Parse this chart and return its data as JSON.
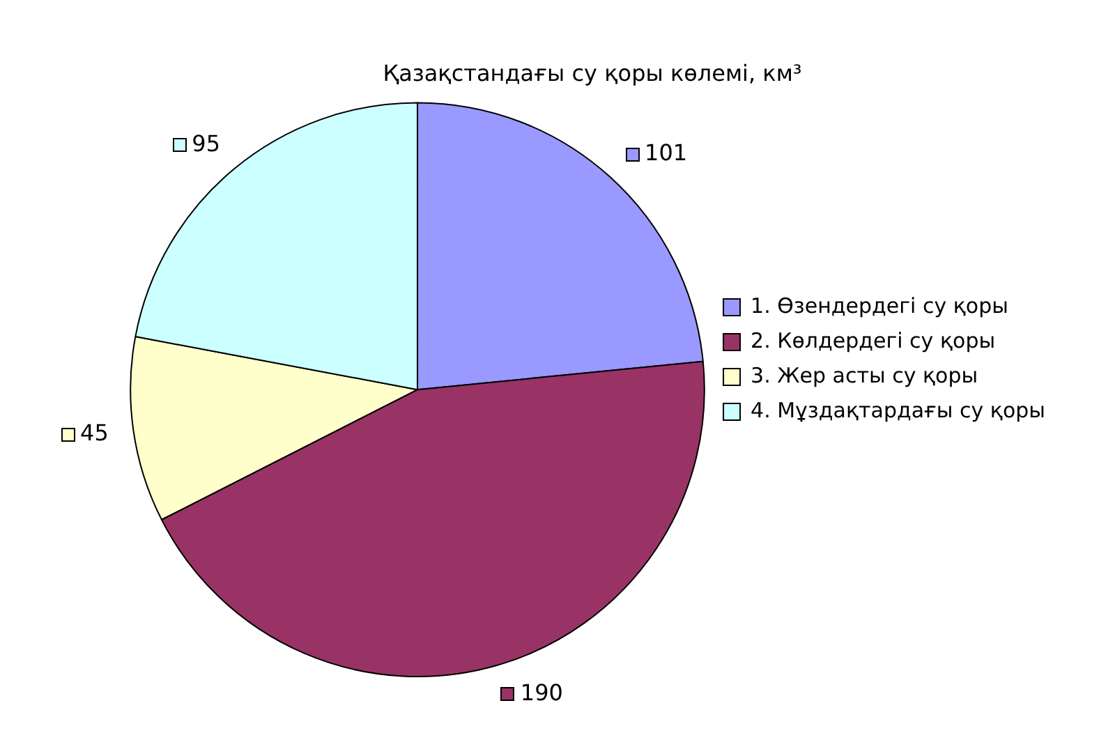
{
  "chart_data": {
    "type": "pie",
    "title": "Қазақстандағы су қоры көлемі, км³",
    "categories": [
      "1. Өзендердегі су қоры",
      "2. Көлдердегі су қоры",
      "3. Жер асты су қоры",
      "4. Мұздақтардағы су қоры"
    ],
    "values": [
      101,
      190,
      45,
      95
    ],
    "colors": [
      "#9999ff",
      "#993366",
      "#ffffcc",
      "#ccffff"
    ],
    "data_labels": true,
    "legend": "right"
  }
}
